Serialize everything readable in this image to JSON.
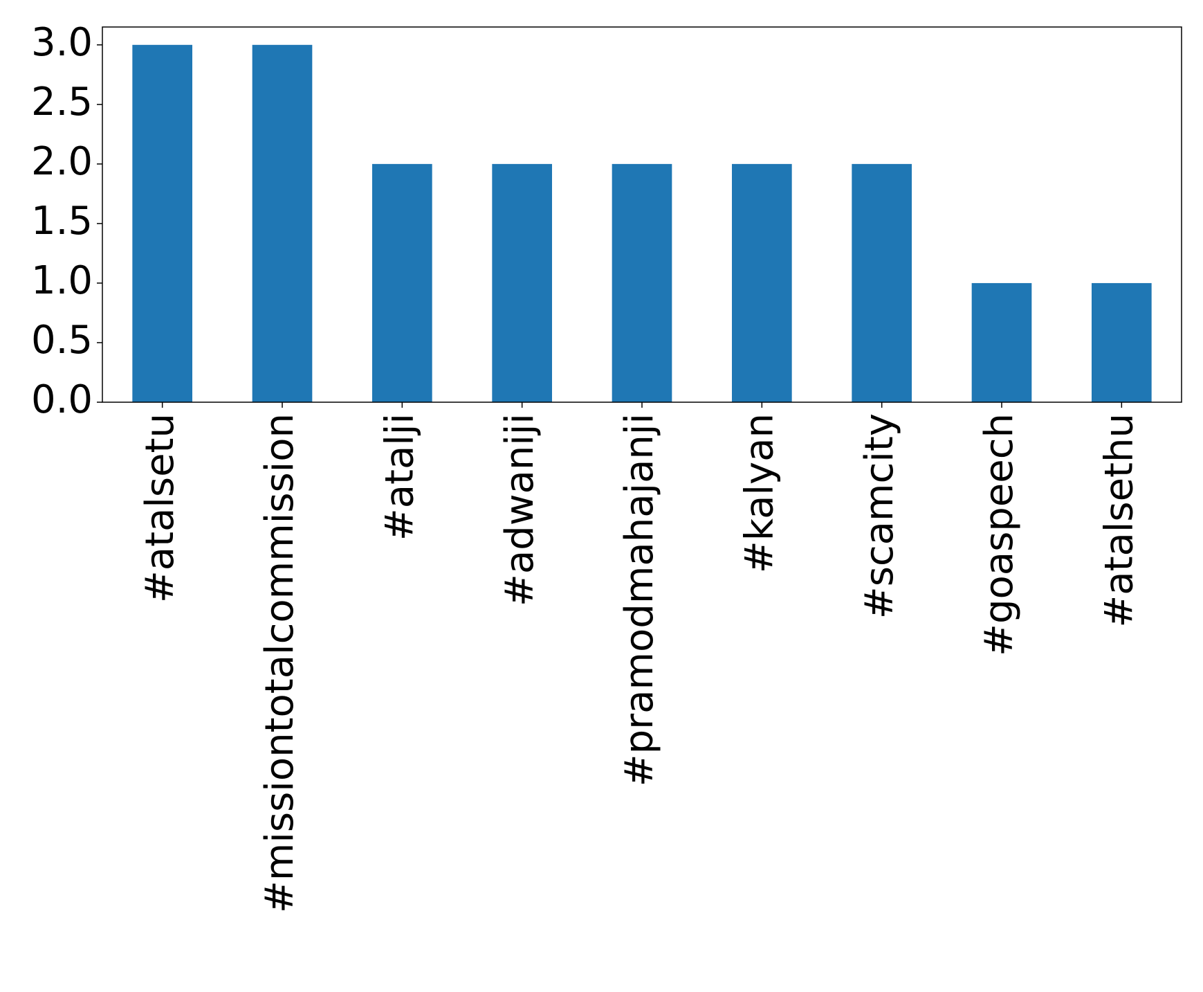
{
  "chart_data": {
    "type": "bar",
    "categories": [
      "#atalsetu",
      "#missiontotalcommission",
      "#atalji",
      "#adwaniji",
      "#pramodmahajanji",
      "#kalyan",
      "#scamcity",
      "#goaspeech",
      "#atalsethu"
    ],
    "values": [
      3,
      3,
      2,
      2,
      2,
      2,
      2,
      1,
      1
    ],
    "color": "#1f77b4",
    "ylim": [
      0,
      3.15
    ],
    "yticks": [
      {
        "value": 0,
        "label": "0.0"
      },
      {
        "value": 0.5,
        "label": "0.5"
      },
      {
        "value": 1,
        "label": "1.0"
      },
      {
        "value": 1.5,
        "label": "1.5"
      },
      {
        "value": 2,
        "label": "2.0"
      },
      {
        "value": 2.5,
        "label": "2.5"
      },
      {
        "value": 3,
        "label": "3.0"
      }
    ],
    "grid": false
  }
}
